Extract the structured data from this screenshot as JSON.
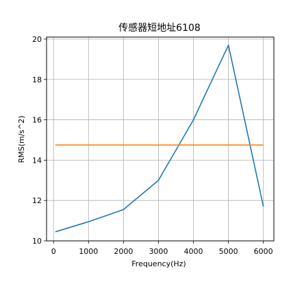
{
  "chart_data": {
    "type": "line",
    "title": "传感器短地址6108",
    "xlabel": "Frequency(Hz)",
    "ylabel": "RMS(m/s^2)",
    "xlim": [
      -200,
      6300
    ],
    "ylim": [
      10,
      20.1
    ],
    "xticks": [
      0,
      1000,
      2000,
      3000,
      4000,
      5000,
      6000
    ],
    "yticks": [
      10,
      12,
      14,
      16,
      18,
      20
    ],
    "xtick_labels": [
      "0",
      "1000",
      "2000",
      "3000",
      "4000",
      "5000",
      "6000"
    ],
    "ytick_labels": [
      "10",
      "12",
      "14",
      "16",
      "18",
      "20"
    ],
    "grid": true,
    "legend": "none",
    "series": [
      {
        "color": "#1f77b4",
        "x": [
          50,
          1000,
          2000,
          3000,
          4000,
          5000,
          6000
        ],
        "y": [
          10.45,
          10.95,
          11.55,
          13.0,
          16.0,
          19.7,
          11.7
        ]
      },
      {
        "color": "#ff7f0e",
        "x": [
          50,
          6000
        ],
        "y": [
          14.75,
          14.75
        ]
      }
    ]
  }
}
